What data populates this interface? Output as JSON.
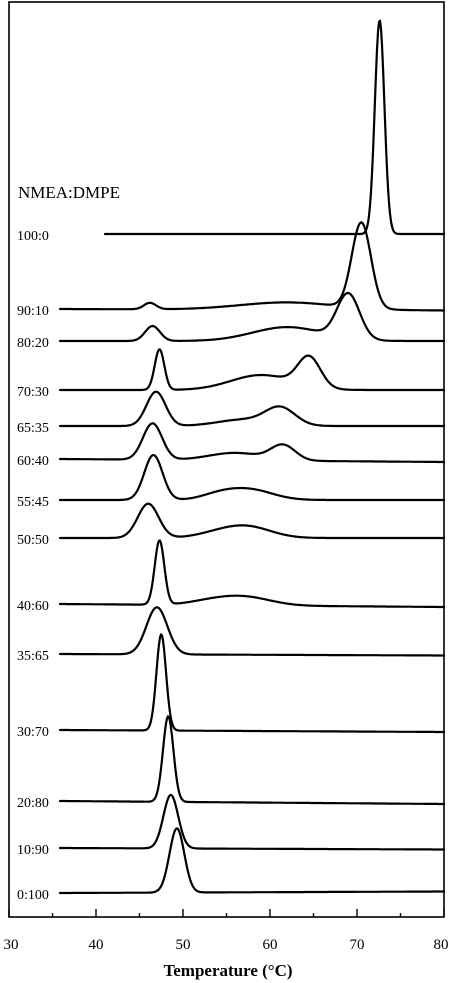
{
  "chart_data": {
    "type": "line",
    "title": "",
    "legend_title": "NMEA:DMPE",
    "xlabel": "Temperature (°C)",
    "ylabel": "",
    "xlim": [
      30,
      80
    ],
    "xticks": [
      "30",
      "40",
      "50",
      "60",
      "70",
      "80"
    ],
    "grid": false,
    "series": [
      {
        "name": "100:0",
        "peaks": [
          {
            "temperature": 72.6,
            "height": 1.0
          }
        ]
      },
      {
        "name": "90:10",
        "peaks": [
          {
            "temperature": 46.2,
            "height": 0.03
          },
          {
            "temperature": 70.5,
            "height": 0.4
          }
        ]
      },
      {
        "name": "80:20",
        "peaks": [
          {
            "temperature": 46.5,
            "height": 0.07
          },
          {
            "temperature": 69.0,
            "height": 0.21
          }
        ]
      },
      {
        "name": "70:30",
        "peaks": [
          {
            "temperature": 47.3,
            "height": 0.19
          },
          {
            "temperature": 64.5,
            "height": 0.14
          }
        ]
      },
      {
        "name": "65:35",
        "peaks": [
          {
            "temperature": 46.9,
            "height": 0.16
          },
          {
            "temperature": 61.2,
            "height": 0.08
          }
        ]
      },
      {
        "name": "60:40",
        "peaks": [
          {
            "temperature": 46.5,
            "height": 0.17
          },
          {
            "temperature": 61.5,
            "height": 0.07
          }
        ]
      },
      {
        "name": "55:45",
        "peaks": [
          {
            "temperature": 46.6,
            "height": 0.21
          },
          {
            "temperature": 57.5,
            "height": 0.05
          }
        ]
      },
      {
        "name": "50:50",
        "peaks": [
          {
            "temperature": 46.0,
            "height": 0.16
          },
          {
            "temperature": 57.5,
            "height": 0.05
          }
        ]
      },
      {
        "name": "40:60",
        "peaks": [
          {
            "temperature": 47.3,
            "height": 0.3
          },
          {
            "temperature": 57.0,
            "height": 0.04
          }
        ]
      },
      {
        "name": "35:65",
        "peaks": [
          {
            "temperature": 47.0,
            "height": 0.22
          }
        ]
      },
      {
        "name": "30:70",
        "peaks": [
          {
            "temperature": 47.5,
            "height": 0.45
          }
        ]
      },
      {
        "name": "20:80",
        "peaks": [
          {
            "temperature": 48.3,
            "height": 0.4
          }
        ]
      },
      {
        "name": "10:90",
        "peaks": [
          {
            "temperature": 48.6,
            "height": 0.25
          }
        ]
      },
      {
        "name": "0:100",
        "peaks": [
          {
            "temperature": 49.3,
            "height": 0.3
          }
        ]
      }
    ]
  }
}
